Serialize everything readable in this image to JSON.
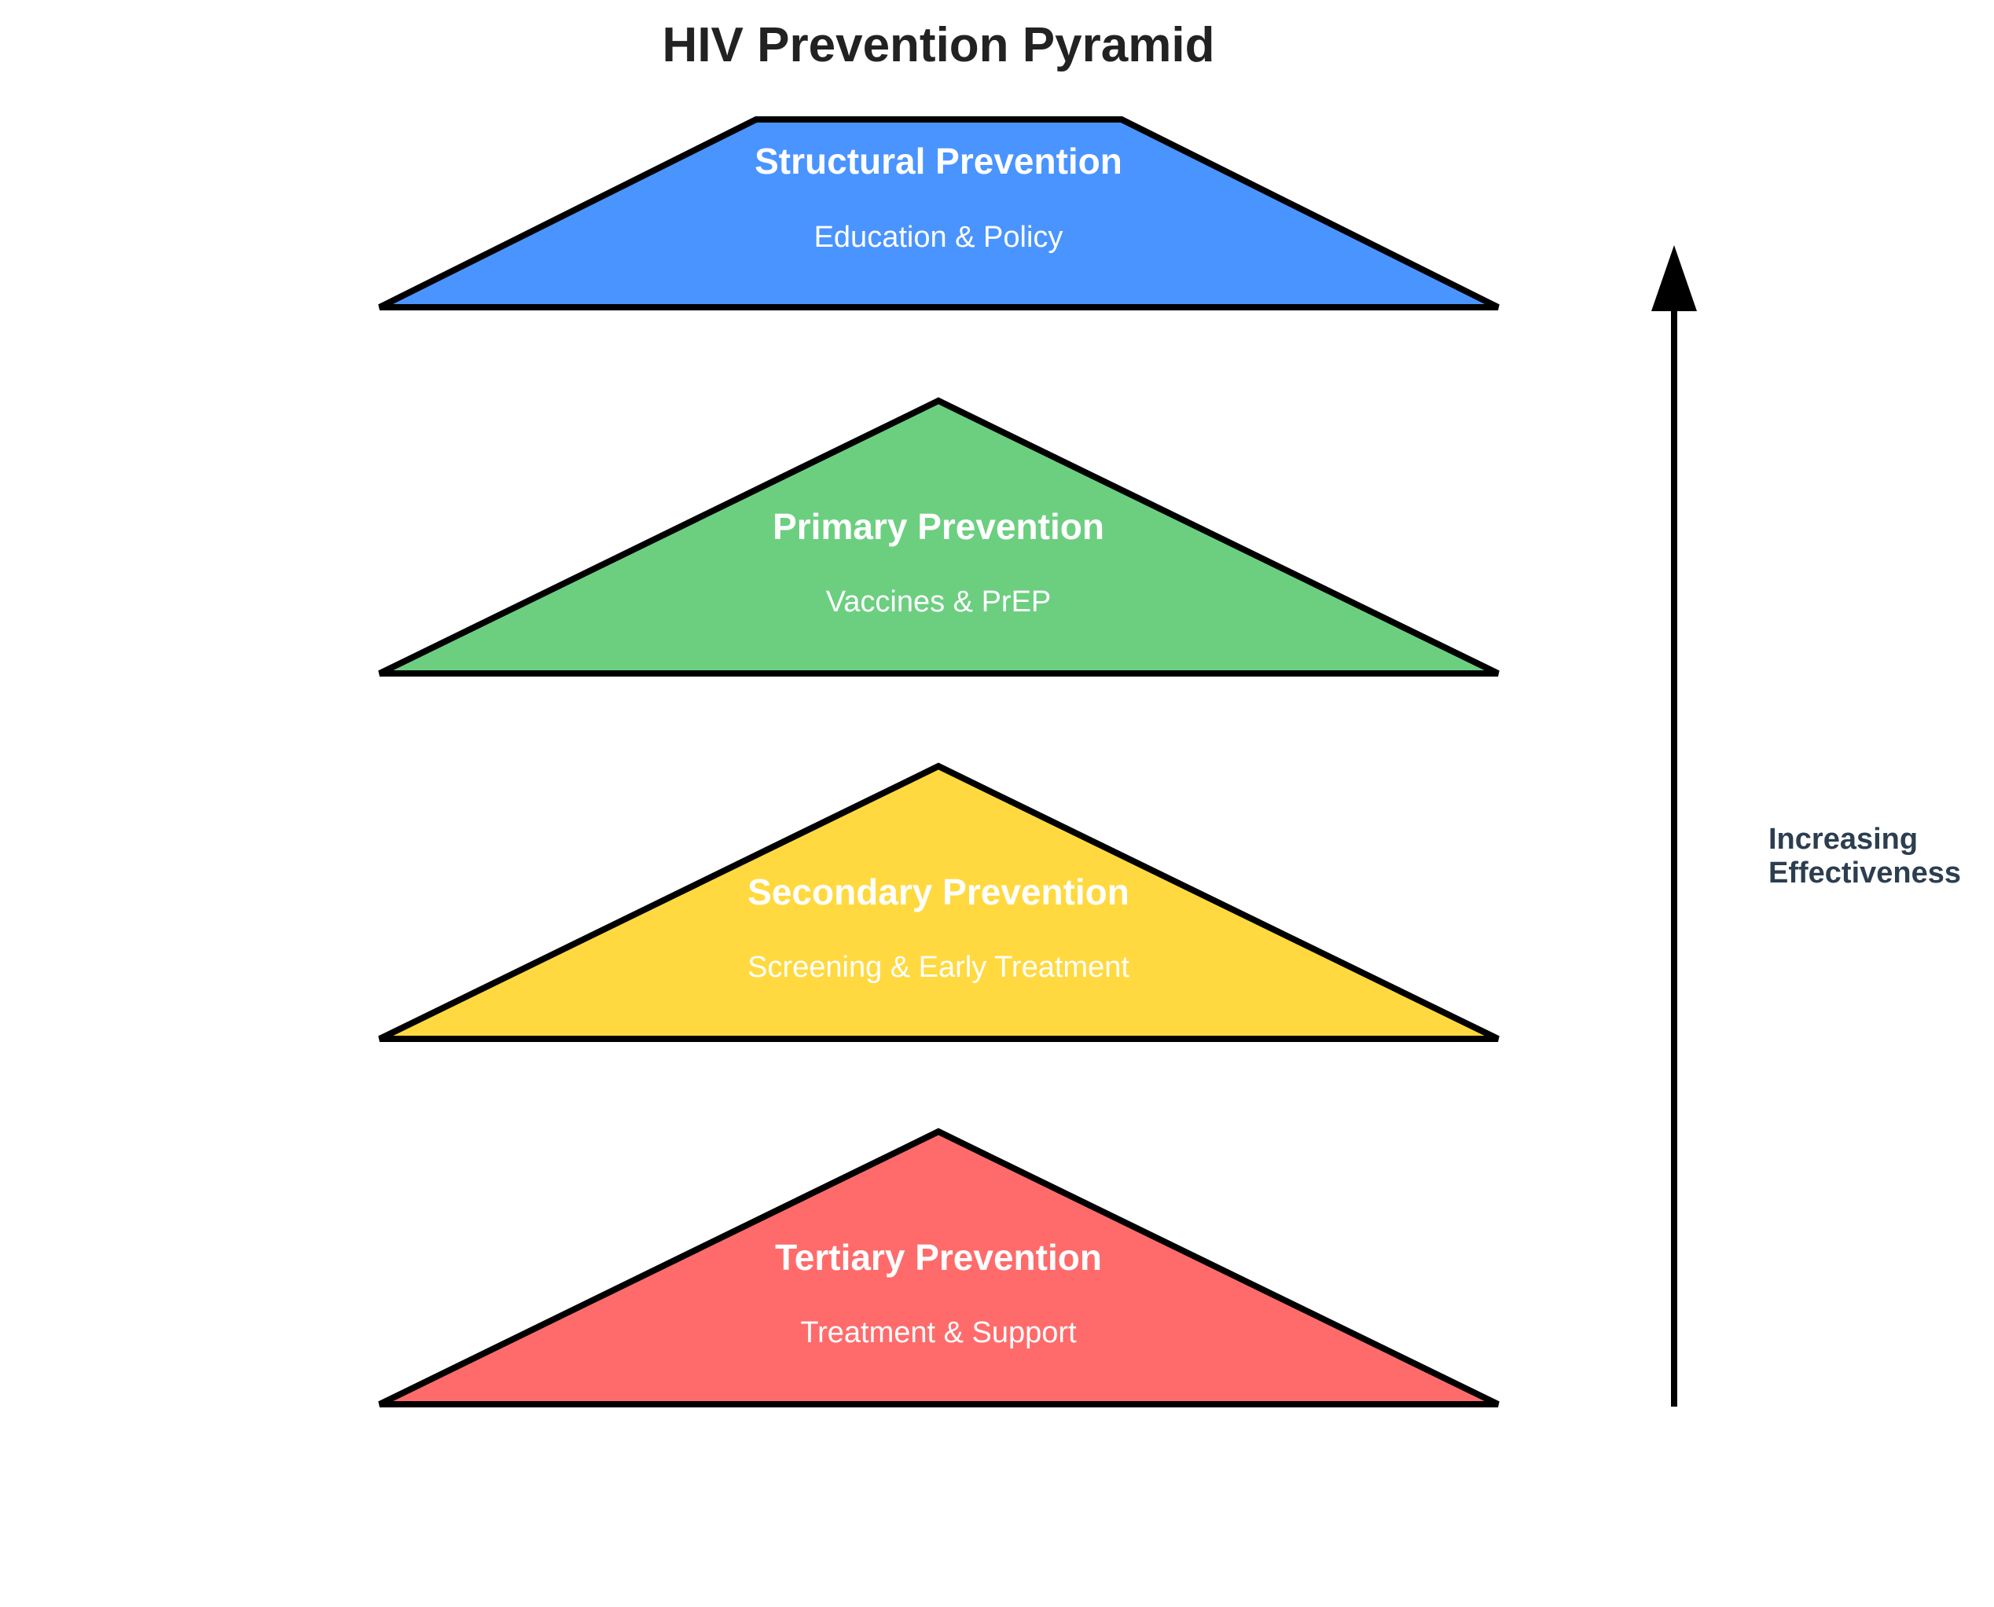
{
  "title": "HIV Prevention Pyramid",
  "tiers": [
    {
      "label": "Structural Prevention",
      "sub": "Education & Policy",
      "color": "#4a94ff"
    },
    {
      "label": "Primary Prevention",
      "sub": "Vaccines & PrEP",
      "color": "#6ccf80"
    },
    {
      "label": "Secondary Prevention",
      "sub": "Screening & Early Treatment",
      "color": "#ffd93f"
    },
    {
      "label": "Tertiary Prevention",
      "sub": "Treatment & Support",
      "color": "#ff6b6b"
    }
  ],
  "axis": {
    "label_line1": "Increasing",
    "label_line2": "Effectiveness"
  }
}
